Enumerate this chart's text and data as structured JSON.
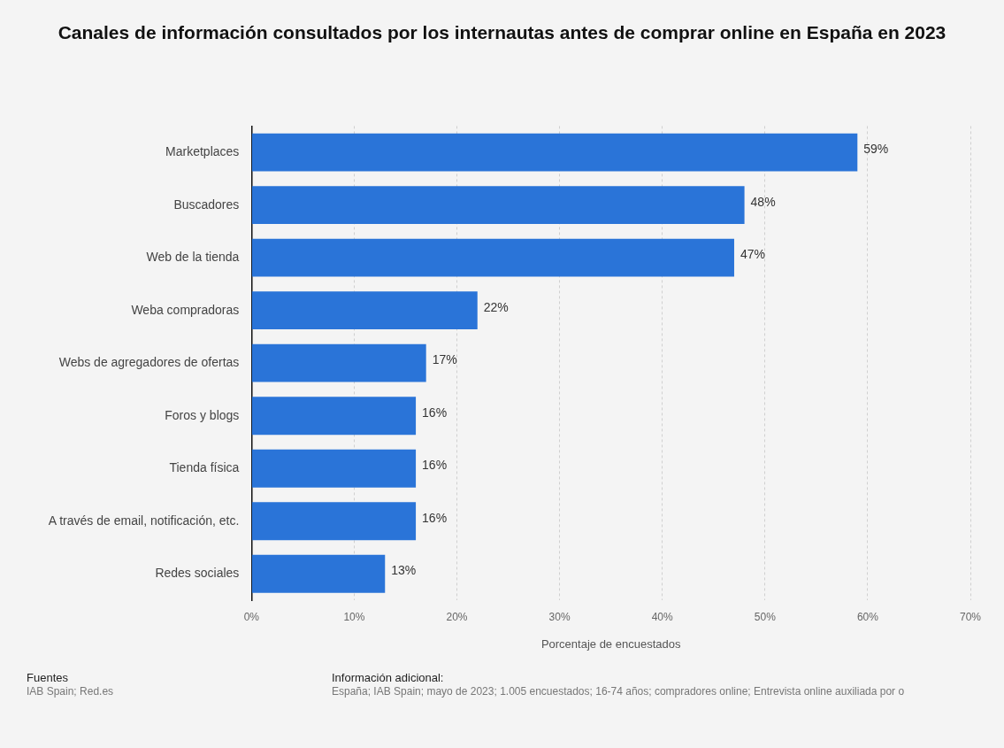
{
  "chart_data": {
    "type": "bar",
    "orientation": "horizontal",
    "title": "Canales de información consultados por los internautas antes de comprar online en España en 2023",
    "categories": [
      "Marketplaces",
      "Buscadores",
      "Web de la tienda",
      "Weba compradoras",
      "Webs de agregadores de ofertas",
      "Foros y blogs",
      "Tienda física",
      "A través de email, notificación, etc.",
      "Redes sociales"
    ],
    "values": [
      59,
      48,
      47,
      22,
      17,
      16,
      16,
      16,
      13
    ],
    "value_labels": [
      "59%",
      "48%",
      "47%",
      "22%",
      "17%",
      "16%",
      "16%",
      "16%",
      "13%"
    ],
    "color": "#2a74d8",
    "xlim": [
      0,
      70
    ],
    "xticks": [
      {
        "value": 0,
        "label": "0%"
      },
      {
        "value": 10,
        "label": "10%"
      },
      {
        "value": 20,
        "label": "20%"
      },
      {
        "value": 30,
        "label": "30%"
      },
      {
        "value": 40,
        "label": "40%"
      },
      {
        "value": 50,
        "label": "50%"
      },
      {
        "value": 60,
        "label": "60%"
      },
      {
        "value": 70,
        "label": "70%"
      }
    ],
    "xlabel": "Porcentaje de encuestados",
    "grid": "x",
    "legend": false,
    "annotations": [
      "Fuentes",
      "IAB Spain; Red.es",
      "Información adicional:",
      "España; IAB Spain; mayo de 2023; 1.005 encuestados; 16-74 años; compradores online; Entrevista online auxiliada por o"
    ]
  }
}
